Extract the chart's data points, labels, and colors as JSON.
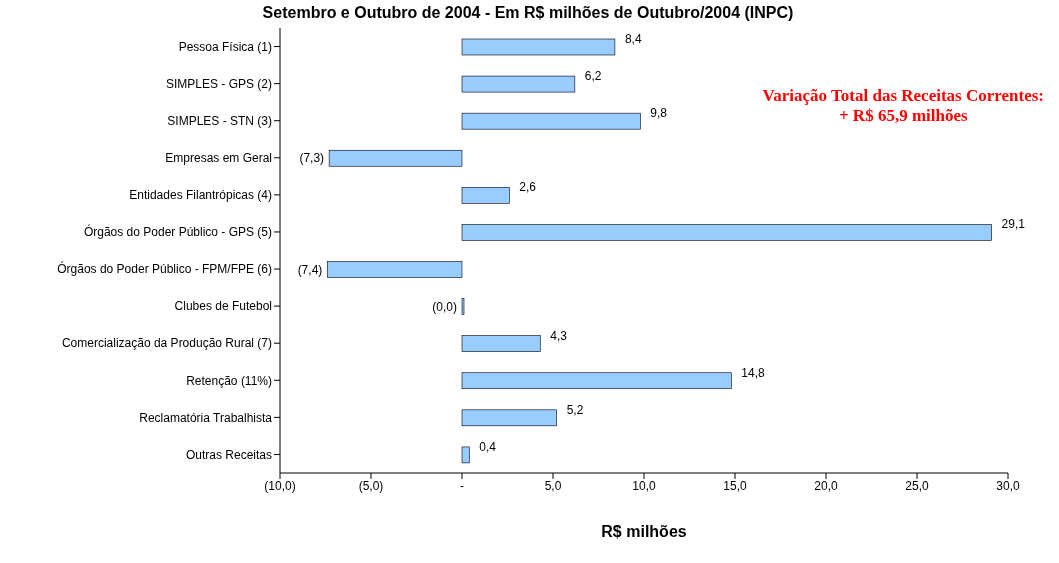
{
  "chart_data": {
    "type": "bar",
    "orientation": "horizontal",
    "title": "Setembro e Outubro de 2004 - Em R$ milhões de Outubro/2004 (INPC)",
    "xlabel": "R$ milhões",
    "categories": [
      "Pessoa Física (1)",
      "SIMPLES - GPS (2)",
      "SIMPLES - STN (3)",
      "Empresas em Geral",
      "Entidades Filantrópicas (4)",
      "Órgãos do Poder Público - GPS (5)",
      "Órgãos do Poder Público - FPM/FPE (6)",
      "Clubes de Futebol",
      "Comercialização da Produção Rural (7)",
      "Retenção (11%)",
      "Reclamatória Trabalhista",
      "Outras Receitas"
    ],
    "values": [
      8.4,
      6.2,
      9.8,
      -7.3,
      2.6,
      29.1,
      -7.4,
      0,
      4.3,
      14.8,
      5.2,
      0.4
    ],
    "value_labels": [
      "8,4",
      "6,2",
      "9,8",
      "(7,3)",
      "2,6",
      "29,1",
      "(7,4)",
      "(0,0)",
      "4,3",
      "14,8",
      "5,2",
      "0,4"
    ],
    "color": "#99ccff",
    "xlim": [
      -10,
      30
    ],
    "xticks": [
      {
        "value": -10,
        "label": "(10,0)"
      },
      {
        "value": -5,
        "label": "(5,0)"
      },
      {
        "value": 0,
        "label": "-"
      },
      {
        "value": 5,
        "label": "5,0"
      },
      {
        "value": 10,
        "label": "10,0"
      },
      {
        "value": 15,
        "label": "15,0"
      },
      {
        "value": 20,
        "label": "20,0"
      },
      {
        "value": 25,
        "label": "25,0"
      },
      {
        "value": 30,
        "label": "30,0"
      }
    ],
    "annotations": [
      "Variação Total das Receitas Correntes:\n+ R$ 65,9 milhões"
    ],
    "grid": false
  }
}
